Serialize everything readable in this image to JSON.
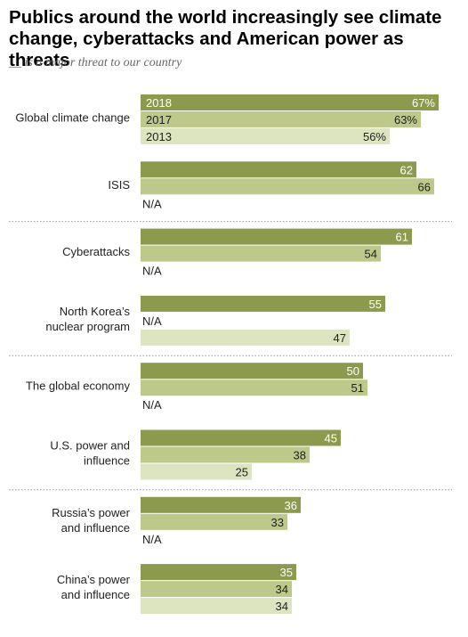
{
  "title": "Publics around the world increasingly see climate change, cyberattacks and American power as threats",
  "subtitle": "__ is a major threat to our country",
  "chart_data": {
    "type": "bar",
    "orientation": "horizontal",
    "series": [
      {
        "name": "2018",
        "color": "#8c9a4e"
      },
      {
        "name": "2017",
        "color": "#bcc98a"
      },
      {
        "name": "2013",
        "color": "#dce5c0"
      }
    ],
    "na_label": "N/A",
    "xlim": [
      0,
      67
    ],
    "categories": [
      {
        "label": "Global climate change",
        "values": [
          67,
          63,
          56
        ],
        "labels": [
          "67%",
          "63%",
          "56%"
        ],
        "show_year": true
      },
      {
        "label": "ISIS",
        "values": [
          62,
          66,
          null
        ],
        "labels": [
          "62",
          "66",
          null
        ]
      },
      {
        "label": "Cyberattacks",
        "values": [
          61,
          54,
          null
        ],
        "labels": [
          "61",
          "54",
          null
        ]
      },
      {
        "label": "North Korea's nuclear program",
        "values": [
          55,
          null,
          47
        ],
        "labels": [
          "55",
          null,
          "47"
        ]
      },
      {
        "label": "The global economy",
        "values": [
          50,
          51,
          null
        ],
        "labels": [
          "50",
          "51",
          null
        ]
      },
      {
        "label": "U.S. power and influence",
        "values": [
          45,
          38,
          25
        ],
        "labels": [
          "45",
          "38",
          "25"
        ]
      },
      {
        "label": "Russia's power and influence",
        "values": [
          36,
          33,
          null
        ],
        "labels": [
          "36",
          "33",
          null
        ]
      },
      {
        "label": "China's power and influence",
        "values": [
          35,
          34,
          34
        ],
        "labels": [
          "35",
          "34",
          "34"
        ]
      }
    ],
    "category_display_lines": [
      [
        "Global climate change"
      ],
      [
        "ISIS"
      ],
      [
        "Cyberattacks"
      ],
      [
        "North Korea’s",
        "nuclear program"
      ],
      [
        "The global economy"
      ],
      [
        "U.S. power and",
        "influence"
      ],
      [
        "Russia’s power",
        "and influence"
      ],
      [
        "China’s power",
        "and influence"
      ]
    ],
    "separators_after": [
      1,
      3,
      5
    ]
  }
}
